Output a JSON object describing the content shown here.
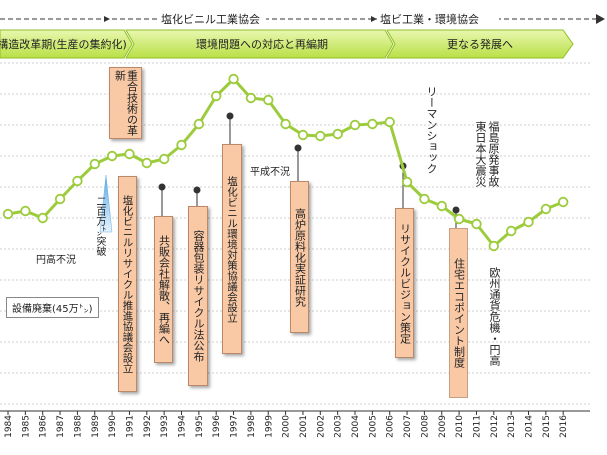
{
  "header": {
    "org_bands": [
      {
        "label": "塩化ビニル工業協会"
      },
      {
        "label": "塩ビ工業・環境協会"
      }
    ],
    "phase_bands": [
      {
        "label": "構造改革期(生産の集約化)"
      },
      {
        "label": "環境問題への対応と再編期"
      },
      {
        "label": "更なる発展へ"
      }
    ]
  },
  "chart_data": {
    "type": "line",
    "x": [
      "1984",
      "1985",
      "1986",
      "1987",
      "1988",
      "1989",
      "1990",
      "1991",
      "1992",
      "1993",
      "1994",
      "1995",
      "1996",
      "1997",
      "1998",
      "1999",
      "2000",
      "2001",
      "2002",
      "2003",
      "2004",
      "2005",
      "2006",
      "2007",
      "2008",
      "2009",
      "2010",
      "2011",
      "2012",
      "2013",
      "2014",
      "2015",
      "2016"
    ],
    "series": [
      {
        "values": [
          214,
          211,
          218,
          199,
          181,
          164,
          156,
          154,
          163,
          159,
          145,
          124,
          96,
          79,
          98,
          100,
          124,
          135,
          136,
          134,
          125,
          124,
          122,
          182,
          199,
          206,
          219,
          224,
          246,
          231,
          222,
          209,
          202
        ]
      }
    ],
    "color": "#9ccc3c",
    "grid": "horizontal dashed",
    "axis": {
      "show_y_ticks": false
    }
  },
  "annotations": {
    "boxes": [
      {
        "id": "box1",
        "text": "重合技術の革新"
      },
      {
        "id": "box2",
        "text": "塩化ビニルリサイクル推進協議会設立"
      },
      {
        "id": "box3",
        "text": "共販会社解散、再編へ"
      },
      {
        "id": "box4",
        "text": "容器包装リサイクル法公布"
      },
      {
        "id": "box5",
        "text": "塩化ビニル環境対策協議会設立"
      },
      {
        "id": "box6",
        "text": "高炉原料化実証研究"
      },
      {
        "id": "box7",
        "text": "リサイクルビジョン策定"
      },
      {
        "id": "box8",
        "text": "住宅エコポイント制度"
      }
    ],
    "labels": [
      {
        "id": "lbl_nihyaku",
        "text": "二百万㌧突破"
      },
      {
        "id": "lbl_endaka",
        "text": "円高不況"
      },
      {
        "id": "lbl_setsubi",
        "text": "設備廃棄(45万㌧)"
      },
      {
        "id": "lbl_heisei",
        "text": "平成不況"
      },
      {
        "id": "lbl_lehman",
        "text": "リーマンショック"
      },
      {
        "id": "lbl_fukushima",
        "text": "福島原発事故"
      },
      {
        "id": "lbl_higashi",
        "text": "東日本大震災"
      },
      {
        "id": "lbl_euro",
        "text": "欧州通貨危機・円高"
      }
    ]
  }
}
